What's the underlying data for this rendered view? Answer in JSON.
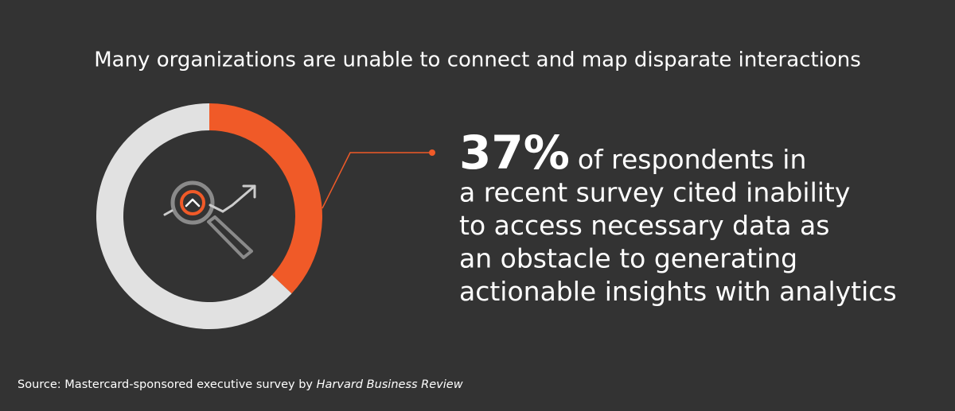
{
  "chart_data": {
    "type": "donut",
    "title": "Many organizations are unable to connect and map disparate interactions",
    "categories": [
      "Cited inability to access necessary data",
      null
    ],
    "values": [
      37,
      63
    ],
    "value_labels": [
      "37%",
      null
    ],
    "colors": [
      "#f05a28",
      "#e1e1e1"
    ],
    "annotation": [
      "of respondents in",
      "a recent survey cited inability",
      "to access necessary data as",
      "an obstacle to generating",
      "actionable insights with analytics"
    ],
    "source": {
      "text": "Source:  Mastercard-sponsored executive survey by",
      "publication": "Harvard Business Review"
    }
  }
}
